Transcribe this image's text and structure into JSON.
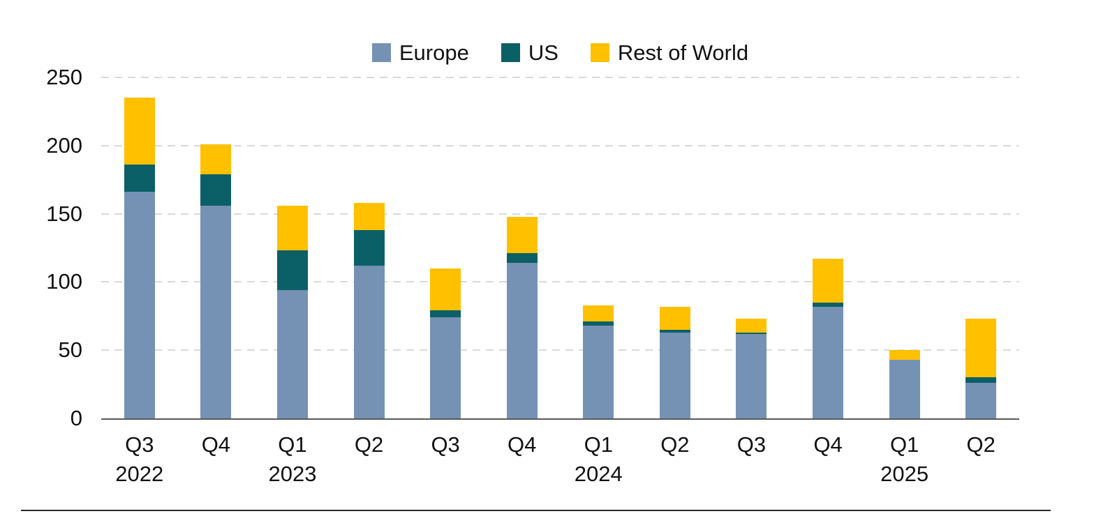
{
  "chart_data": {
    "type": "bar",
    "stacked": true,
    "title": "",
    "xlabel": "",
    "ylabel": "",
    "categories": [
      "Q3",
      "Q4",
      "Q1",
      "Q2",
      "Q3",
      "Q4",
      "Q1",
      "Q2",
      "Q3",
      "Q4",
      "Q1",
      "Q2"
    ],
    "year_labels": [
      {
        "index": 0,
        "label": "2022"
      },
      {
        "index": 2,
        "label": "2023"
      },
      {
        "index": 6,
        "label": "2024"
      },
      {
        "index": 10,
        "label": "2025"
      }
    ],
    "series": [
      {
        "name": "Europe",
        "color": "#7592B5",
        "values": [
          166,
          156,
          94,
          112,
          74,
          114,
          68,
          63,
          62,
          82,
          43,
          26
        ]
      },
      {
        "name": "US",
        "color": "#0B5F66",
        "values": [
          20,
          23,
          29,
          26,
          5,
          7,
          3,
          2,
          1,
          3,
          0,
          4
        ]
      },
      {
        "name": "Rest of World",
        "color": "#FFC000",
        "values": [
          49,
          22,
          33,
          20,
          31,
          27,
          12,
          17,
          10,
          32,
          7,
          43
        ]
      }
    ],
    "stack_totals": [
      235,
      201,
      156,
      158,
      110,
      148,
      83,
      82,
      73,
      117,
      50,
      73
    ],
    "ylim": [
      0,
      250
    ],
    "yticks": [
      0,
      50,
      100,
      150,
      200,
      250
    ],
    "grid": "horizontal dashed, every 50",
    "legend_position": "top-center"
  },
  "style_colors": {
    "gridline": "#D9D9D9",
    "axis_line": "#595959",
    "text": "#111111",
    "bottom_rule": "#262626",
    "background": "#FFFFFF"
  }
}
